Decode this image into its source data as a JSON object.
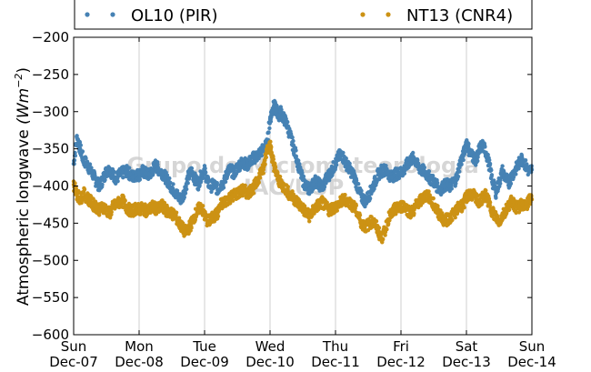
{
  "chart_data": {
    "type": "scatter",
    "ylabel": "Atmospheric longwave (Wm⁻²)",
    "ylabel_text": "Atmospheric longwave ",
    "ylabel_unit": "(Wm",
    "ylabel_exp": "−2",
    "ylabel_close": ")",
    "xlim": [
      0,
      7
    ],
    "ylim": [
      -600,
      -200
    ],
    "y_ticks": [
      -200,
      -250,
      -300,
      -350,
      -400,
      -450,
      -500,
      -550,
      -600
    ],
    "y_tick_labels": [
      "−200",
      "−250",
      "−300",
      "−350",
      "−400",
      "−450",
      "−500",
      "−550",
      "−600"
    ],
    "x_ticks": [
      {
        "value": 0,
        "day": "Sun",
        "date": "Dec-07"
      },
      {
        "value": 1,
        "day": "Mon",
        "date": "Dec-08"
      },
      {
        "value": 2,
        "day": "Tue",
        "date": "Dec-09"
      },
      {
        "value": 3,
        "day": "Wed",
        "date": "Dec-10"
      },
      {
        "value": 4,
        "day": "Thu",
        "date": "Dec-11"
      },
      {
        "value": 5,
        "day": "Fri",
        "date": "Dec-12"
      },
      {
        "value": 6,
        "day": "Sat",
        "date": "Dec-13"
      },
      {
        "value": 7,
        "day": "Sun",
        "date": "Dec-14"
      }
    ],
    "grid": "x-only",
    "legend_position": "top",
    "watermark": [
      "Grupo de Micrometeorologia",
      "IAG/USP"
    ],
    "series": [
      {
        "name": "OL10 (PIR)",
        "color": "#4682b4",
        "points": [
          [
            0.0,
            -370
          ],
          [
            0.05,
            -335
          ],
          [
            0.1,
            -350
          ],
          [
            0.15,
            -365
          ],
          [
            0.2,
            -370
          ],
          [
            0.25,
            -378
          ],
          [
            0.3,
            -385
          ],
          [
            0.35,
            -395
          ],
          [
            0.4,
            -400
          ],
          [
            0.45,
            -390
          ],
          [
            0.5,
            -380
          ],
          [
            0.55,
            -378
          ],
          [
            0.6,
            -385
          ],
          [
            0.65,
            -390
          ],
          [
            0.7,
            -385
          ],
          [
            0.75,
            -382
          ],
          [
            0.8,
            -380
          ],
          [
            0.85,
            -383
          ],
          [
            0.9,
            -388
          ],
          [
            0.95,
            -385
          ],
          [
            1.0,
            -385
          ],
          [
            1.05,
            -380
          ],
          [
            1.1,
            -383
          ],
          [
            1.15,
            -385
          ],
          [
            1.2,
            -380
          ],
          [
            1.25,
            -372
          ],
          [
            1.3,
            -378
          ],
          [
            1.35,
            -382
          ],
          [
            1.4,
            -388
          ],
          [
            1.45,
            -395
          ],
          [
            1.5,
            -402
          ],
          [
            1.55,
            -408
          ],
          [
            1.6,
            -415
          ],
          [
            1.65,
            -418
          ],
          [
            1.7,
            -405
          ],
          [
            1.75,
            -388
          ],
          [
            1.8,
            -380
          ],
          [
            1.85,
            -390
          ],
          [
            1.9,
            -398
          ],
          [
            1.95,
            -385
          ],
          [
            2.0,
            -380
          ],
          [
            2.05,
            -395
          ],
          [
            2.1,
            -400
          ],
          [
            2.15,
            -398
          ],
          [
            2.2,
            -405
          ],
          [
            2.25,
            -398
          ],
          [
            2.3,
            -395
          ],
          [
            2.35,
            -380
          ],
          [
            2.4,
            -378
          ],
          [
            2.45,
            -383
          ],
          [
            2.5,
            -375
          ],
          [
            2.55,
            -370
          ],
          [
            2.6,
            -368
          ],
          [
            2.65,
            -372
          ],
          [
            2.7,
            -366
          ],
          [
            2.75,
            -362
          ],
          [
            2.8,
            -360
          ],
          [
            2.85,
            -355
          ],
          [
            2.9,
            -350
          ],
          [
            2.95,
            -345
          ],
          [
            3.0,
            -310
          ],
          [
            3.03,
            -300
          ],
          [
            3.06,
            -292
          ],
          [
            3.1,
            -298
          ],
          [
            3.13,
            -305
          ],
          [
            3.16,
            -300
          ],
          [
            3.2,
            -308
          ],
          [
            3.25,
            -315
          ],
          [
            3.3,
            -330
          ],
          [
            3.35,
            -345
          ],
          [
            3.4,
            -360
          ],
          [
            3.45,
            -378
          ],
          [
            3.5,
            -392
          ],
          [
            3.55,
            -400
          ],
          [
            3.6,
            -405
          ],
          [
            3.65,
            -398
          ],
          [
            3.7,
            -393
          ],
          [
            3.75,
            -398
          ],
          [
            3.8,
            -402
          ],
          [
            3.85,
            -392
          ],
          [
            3.9,
            -385
          ],
          [
            3.95,
            -378
          ],
          [
            4.0,
            -370
          ],
          [
            4.05,
            -360
          ],
          [
            4.1,
            -358
          ],
          [
            4.15,
            -368
          ],
          [
            4.2,
            -375
          ],
          [
            4.25,
            -382
          ],
          [
            4.3,
            -390
          ],
          [
            4.35,
            -405
          ],
          [
            4.4,
            -415
          ],
          [
            4.45,
            -420
          ],
          [
            4.5,
            -415
          ],
          [
            4.55,
            -405
          ],
          [
            4.6,
            -395
          ],
          [
            4.65,
            -385
          ],
          [
            4.7,
            -380
          ],
          [
            4.75,
            -378
          ],
          [
            4.8,
            -382
          ],
          [
            4.85,
            -388
          ],
          [
            4.9,
            -385
          ],
          [
            4.95,
            -383
          ],
          [
            5.0,
            -382
          ],
          [
            5.05,
            -378
          ],
          [
            5.1,
            -370
          ],
          [
            5.15,
            -365
          ],
          [
            5.2,
            -362
          ],
          [
            5.25,
            -372
          ],
          [
            5.3,
            -378
          ],
          [
            5.35,
            -380
          ],
          [
            5.4,
            -385
          ],
          [
            5.45,
            -390
          ],
          [
            5.5,
            -394
          ],
          [
            5.55,
            -400
          ],
          [
            5.6,
            -405
          ],
          [
            5.65,
            -400
          ],
          [
            5.7,
            -398
          ],
          [
            5.75,
            -400
          ],
          [
            5.8,
            -395
          ],
          [
            5.85,
            -390
          ],
          [
            5.9,
            -370
          ],
          [
            5.95,
            -360
          ],
          [
            6.0,
            -340
          ],
          [
            6.05,
            -355
          ],
          [
            6.1,
            -360
          ],
          [
            6.15,
            -365
          ],
          [
            6.2,
            -350
          ],
          [
            6.25,
            -345
          ],
          [
            6.3,
            -355
          ],
          [
            6.35,
            -372
          ],
          [
            6.4,
            -395
          ],
          [
            6.45,
            -408
          ],
          [
            6.5,
            -395
          ],
          [
            6.55,
            -380
          ],
          [
            6.6,
            -390
          ],
          [
            6.65,
            -395
          ],
          [
            6.7,
            -385
          ],
          [
            6.75,
            -378
          ],
          [
            6.8,
            -370
          ],
          [
            6.85,
            -362
          ],
          [
            6.9,
            -372
          ],
          [
            6.95,
            -380
          ],
          [
            7.0,
            -378
          ]
        ]
      },
      {
        "name": "NT13 (CNR4)",
        "color": "#cc9214",
        "points": [
          [
            0.0,
            -398
          ],
          [
            0.05,
            -410
          ],
          [
            0.1,
            -418
          ],
          [
            0.15,
            -410
          ],
          [
            0.2,
            -415
          ],
          [
            0.25,
            -420
          ],
          [
            0.3,
            -425
          ],
          [
            0.35,
            -428
          ],
          [
            0.4,
            -432
          ],
          [
            0.45,
            -428
          ],
          [
            0.5,
            -432
          ],
          [
            0.55,
            -437
          ],
          [
            0.6,
            -428
          ],
          [
            0.65,
            -425
          ],
          [
            0.7,
            -422
          ],
          [
            0.75,
            -420
          ],
          [
            0.8,
            -428
          ],
          [
            0.85,
            -432
          ],
          [
            0.9,
            -434
          ],
          [
            0.95,
            -430
          ],
          [
            1.0,
            -432
          ],
          [
            1.05,
            -430
          ],
          [
            1.1,
            -433
          ],
          [
            1.15,
            -432
          ],
          [
            1.2,
            -428
          ],
          [
            1.25,
            -430
          ],
          [
            1.3,
            -432
          ],
          [
            1.35,
            -426
          ],
          [
            1.4,
            -432
          ],
          [
            1.45,
            -435
          ],
          [
            1.5,
            -437
          ],
          [
            1.55,
            -440
          ],
          [
            1.6,
            -448
          ],
          [
            1.65,
            -455
          ],
          [
            1.7,
            -462
          ],
          [
            1.75,
            -458
          ],
          [
            1.8,
            -450
          ],
          [
            1.85,
            -440
          ],
          [
            1.9,
            -432
          ],
          [
            1.95,
            -428
          ],
          [
            2.0,
            -440
          ],
          [
            2.05,
            -448
          ],
          [
            2.1,
            -445
          ],
          [
            2.15,
            -440
          ],
          [
            2.2,
            -437
          ],
          [
            2.25,
            -425
          ],
          [
            2.3,
            -422
          ],
          [
            2.35,
            -418
          ],
          [
            2.4,
            -415
          ],
          [
            2.45,
            -412
          ],
          [
            2.5,
            -410
          ],
          [
            2.55,
            -408
          ],
          [
            2.6,
            -405
          ],
          [
            2.65,
            -410
          ],
          [
            2.7,
            -406
          ],
          [
            2.75,
            -402
          ],
          [
            2.8,
            -395
          ],
          [
            2.85,
            -382
          ],
          [
            2.9,
            -378
          ],
          [
            2.95,
            -350
          ],
          [
            3.0,
            -345
          ],
          [
            3.03,
            -360
          ],
          [
            3.06,
            -372
          ],
          [
            3.1,
            -385
          ],
          [
            3.15,
            -395
          ],
          [
            3.2,
            -400
          ],
          [
            3.25,
            -405
          ],
          [
            3.3,
            -412
          ],
          [
            3.35,
            -415
          ],
          [
            3.4,
            -420
          ],
          [
            3.45,
            -425
          ],
          [
            3.5,
            -430
          ],
          [
            3.55,
            -436
          ],
          [
            3.6,
            -440
          ],
          [
            3.65,
            -435
          ],
          [
            3.7,
            -428
          ],
          [
            3.75,
            -425
          ],
          [
            3.8,
            -422
          ],
          [
            3.85,
            -428
          ],
          [
            3.9,
            -432
          ],
          [
            3.95,
            -430
          ],
          [
            4.0,
            -428
          ],
          [
            4.05,
            -425
          ],
          [
            4.1,
            -420
          ],
          [
            4.15,
            -418
          ],
          [
            4.2,
            -422
          ],
          [
            4.25,
            -425
          ],
          [
            4.3,
            -430
          ],
          [
            4.35,
            -440
          ],
          [
            4.4,
            -450
          ],
          [
            4.45,
            -455
          ],
          [
            4.5,
            -452
          ],
          [
            4.55,
            -448
          ],
          [
            4.6,
            -450
          ],
          [
            4.65,
            -460
          ],
          [
            4.7,
            -470
          ],
          [
            4.75,
            -462
          ],
          [
            4.8,
            -445
          ],
          [
            4.85,
            -438
          ],
          [
            4.9,
            -432
          ],
          [
            4.95,
            -430
          ],
          [
            5.0,
            -428
          ],
          [
            5.05,
            -425
          ],
          [
            5.1,
            -432
          ],
          [
            5.15,
            -436
          ],
          [
            5.2,
            -432
          ],
          [
            5.25,
            -422
          ],
          [
            5.3,
            -420
          ],
          [
            5.35,
            -415
          ],
          [
            5.4,
            -412
          ],
          [
            5.45,
            -418
          ],
          [
            5.5,
            -425
          ],
          [
            5.55,
            -432
          ],
          [
            5.6,
            -440
          ],
          [
            5.65,
            -445
          ],
          [
            5.7,
            -446
          ],
          [
            5.75,
            -442
          ],
          [
            5.8,
            -438
          ],
          [
            5.85,
            -432
          ],
          [
            5.9,
            -428
          ],
          [
            5.95,
            -425
          ],
          [
            6.0,
            -415
          ],
          [
            6.05,
            -410
          ],
          [
            6.1,
            -412
          ],
          [
            6.15,
            -418
          ],
          [
            6.2,
            -422
          ],
          [
            6.25,
            -415
          ],
          [
            6.3,
            -412
          ],
          [
            6.35,
            -425
          ],
          [
            6.4,
            -435
          ],
          [
            6.45,
            -442
          ],
          [
            6.5,
            -448
          ],
          [
            6.55,
            -440
          ],
          [
            6.6,
            -432
          ],
          [
            6.65,
            -425
          ],
          [
            6.7,
            -420
          ],
          [
            6.75,
            -428
          ],
          [
            6.8,
            -430
          ],
          [
            6.85,
            -424
          ],
          [
            6.9,
            -428
          ],
          [
            6.95,
            -420
          ],
          [
            7.0,
            -418
          ]
        ]
      }
    ]
  }
}
